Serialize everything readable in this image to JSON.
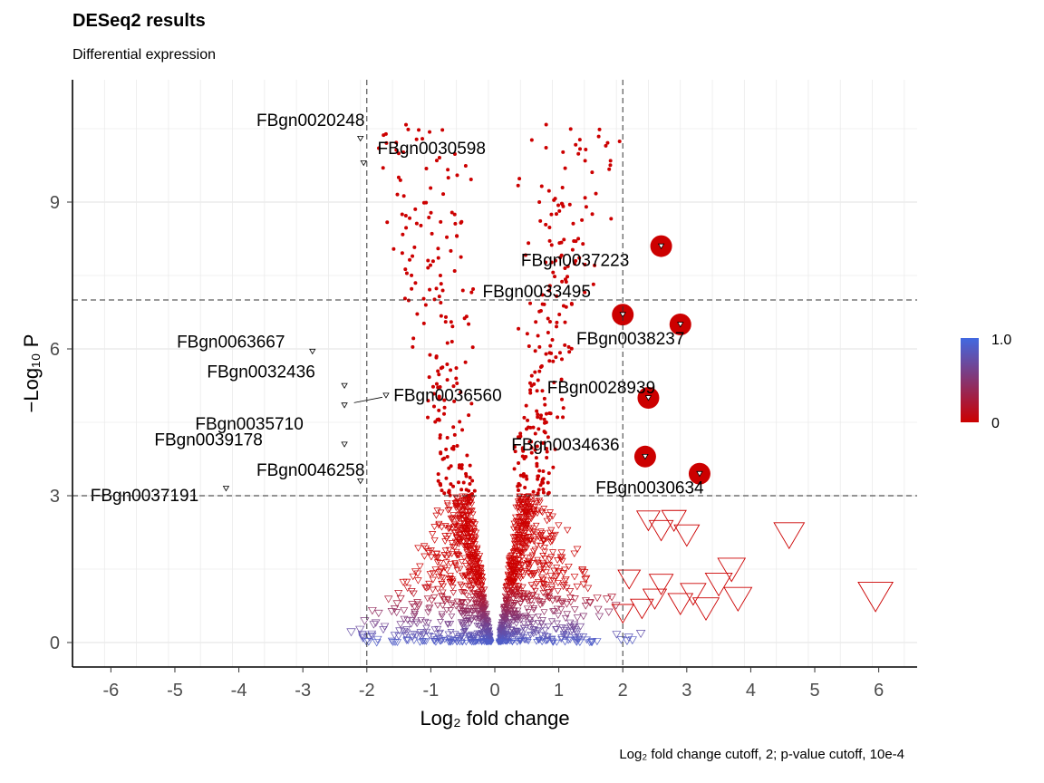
{
  "chart_data": {
    "type": "scatter",
    "title": "DESeq2 results",
    "subtitle": "Differential expression",
    "caption": "Log₂ fold change cutoff, 2; p-value cutoff, 10e-4",
    "xlabel": "Log₂ fold change",
    "ylabel": "−Log₁₀ P",
    "xlim": [
      -6.6,
      6.6
    ],
    "ylim": [
      -0.5,
      11.5
    ],
    "x_ticks": [
      -6,
      -5,
      -4,
      -3,
      -2,
      -1,
      0,
      1,
      2,
      3,
      4,
      5,
      6
    ],
    "x_tick_labels": [
      "-6",
      "-5",
      "-4",
      "-3",
      "-2",
      "-1",
      "0",
      "1",
      "2",
      "3",
      "4",
      "5",
      "6"
    ],
    "y_ticks": [
      0,
      3,
      6,
      9
    ],
    "y_tick_labels": [
      "0",
      "3",
      "6",
      "9"
    ],
    "cutoffs": {
      "log2fc": [
        -2,
        2
      ],
      "neg_log10_p": [
        3,
        7
      ]
    },
    "legend": {
      "max_label": "1.0",
      "min_label": "0",
      "colors": [
        "#4169e1",
        "#cc0000"
      ],
      "position": "right"
    },
    "colors": {
      "significant": "#cc0000",
      "low": "#cc0000",
      "high": "#4169e1",
      "grid": "#ebebeb"
    },
    "labeled_genes": [
      {
        "id": "FBgn0020248",
        "x": -2.1,
        "y": 10.3
      },
      {
        "id": "FBgn0030598",
        "x": -2.05,
        "y": 9.8
      },
      {
        "id": "FBgn0037223",
        "x": 2.6,
        "y": 8.1
      },
      {
        "id": "FBgn0033495",
        "x": 2.0,
        "y": 6.7
      },
      {
        "id": "FBgn0038237",
        "x": 2.9,
        "y": 6.5
      },
      {
        "id": "FBgn0063667",
        "x": -2.85,
        "y": 5.95
      },
      {
        "id": "FBgn0032436",
        "x": -2.35,
        "y": 5.25
      },
      {
        "id": "FBgn0036560",
        "x": -1.7,
        "y": 5.05
      },
      {
        "id": "FBgn0028939",
        "x": 2.4,
        "y": 5.0
      },
      {
        "id": "FBgn0035710",
        "x": -2.35,
        "y": 4.85
      },
      {
        "id": "FBgn0039178",
        "x": -2.35,
        "y": 4.05
      },
      {
        "id": "FBgn0034636",
        "x": 2.35,
        "y": 3.8
      },
      {
        "id": "FBgn0046258",
        "x": -2.1,
        "y": 3.3
      },
      {
        "id": "FBgn0037191",
        "x": -4.2,
        "y": 3.15
      },
      {
        "id": "FBgn0030634",
        "x": 3.2,
        "y": 3.45
      }
    ]
  }
}
